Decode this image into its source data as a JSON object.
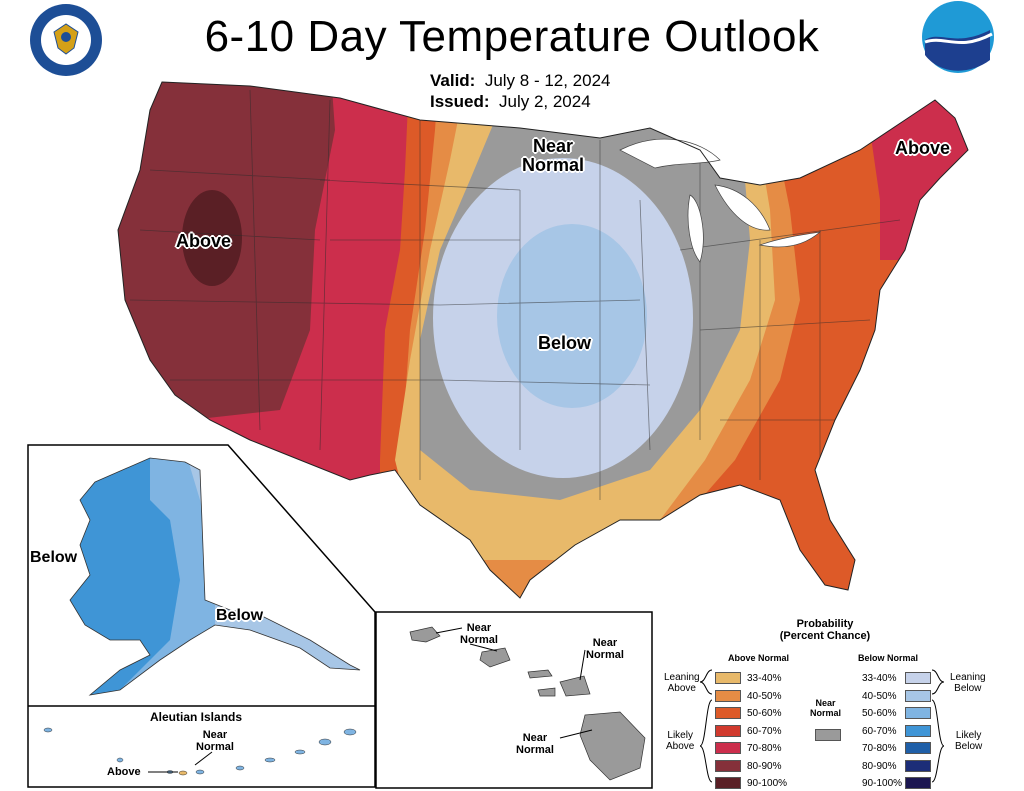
{
  "title": "6-10 Day Temperature Outlook",
  "valid_label": "Valid:",
  "valid_dates": "July 8 - 12, 2024",
  "issued_label": "Issued:",
  "issued_date": "July 2, 2024",
  "logos": {
    "left": "department-of-commerce-seal",
    "right": "noaa-logo"
  },
  "map_labels": {
    "above_west": "Above",
    "above_northeast": "Above",
    "near_normal_north": "Near\nNormal",
    "below_central": "Below",
    "alaska_below_west": "Below",
    "alaska_below_south": "Below",
    "aleutian_title": "Aleutian Islands",
    "aleutian_near_normal": "Near\nNormal",
    "aleutian_above": "Above",
    "hawaii_near_normal_1": "Near\nNormal",
    "hawaii_near_normal_2": "Near\nNormal",
    "hawaii_near_normal_3": "Near\nNormal"
  },
  "legend": {
    "title": "Probability\n(Percent Chance)",
    "above_header": "Above Normal",
    "below_header": "Below Normal",
    "near_normal": "Near\nNormal",
    "leaning_above": "Leaning\nAbove",
    "likely_above": "Likely\nAbove",
    "leaning_below": "Leaning\nBelow",
    "likely_below": "Likely\nBelow",
    "above": [
      {
        "range": "33-40%",
        "color": "#e8b96a"
      },
      {
        "range": "40-50%",
        "color": "#e58c45"
      },
      {
        "range": "50-60%",
        "color": "#dd5a28"
      },
      {
        "range": "60-70%",
        "color": "#d13a2e"
      },
      {
        "range": "70-80%",
        "color": "#cc2e4c"
      },
      {
        "range": "80-90%",
        "color": "#85303a"
      },
      {
        "range": "90-100%",
        "color": "#5a1f25"
      }
    ],
    "near_color": "#9a9a9a",
    "below": [
      {
        "range": "33-40%",
        "color": "#c6d2ea"
      },
      {
        "range": "40-50%",
        "color": "#a7c6e6"
      },
      {
        "range": "50-60%",
        "color": "#7fb4e2"
      },
      {
        "range": "60-70%",
        "color": "#3f95d6"
      },
      {
        "range": "70-80%",
        "color": "#1f5fa8"
      },
      {
        "range": "80-90%",
        "color": "#1c2d78"
      },
      {
        "range": "90-100%",
        "color": "#1b1650"
      }
    ]
  }
}
